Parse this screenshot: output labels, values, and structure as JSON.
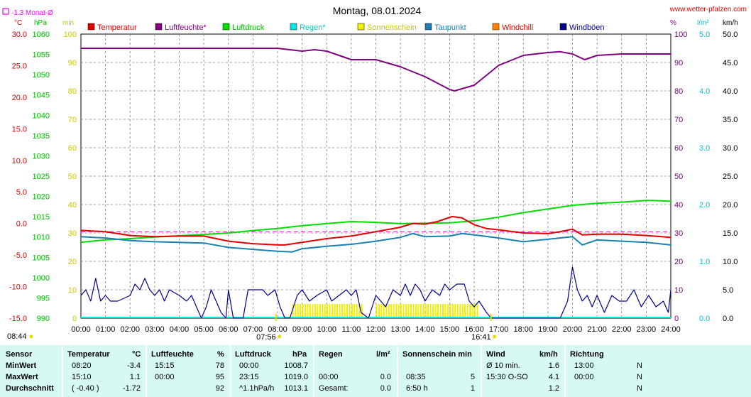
{
  "header": {
    "title": "Montag, 08.01.2024",
    "site": "www.wetter-pfalzen.com",
    "monthly_avg_label": "-1.3 Monat-Ø"
  },
  "axis_units": {
    "temp": "°C",
    "press": "hPa",
    "min": "min",
    "percent": "%",
    "rain": "l/m²",
    "wind": "km/h"
  },
  "colors": {
    "temperature": "#e00000",
    "humidity": "#800080",
    "pressure": "#00dd00",
    "rain": "#00e8e8",
    "sunshine": "#f0f000",
    "dewpoint": "#1a80b0",
    "windchill": "#ff8000",
    "gusts": "#00008b",
    "avg_line": "#ff00ff",
    "grid": "#808080",
    "stats_bg": "#d7f9f4"
  },
  "chart_data": {
    "type": "line",
    "title": "Montag, 08.01.2024",
    "x_ticks": [
      "00:00",
      "01:00",
      "02:00",
      "03:00",
      "04:00",
      "05:00",
      "06:00",
      "07:00",
      "08:00",
      "09:00",
      "10:00",
      "11:00",
      "12:00",
      "13:00",
      "14:00",
      "15:00",
      "16:00",
      "17:00",
      "18:00",
      "19:00",
      "20:00",
      "21:00",
      "22:00",
      "23:00",
      "24:00"
    ],
    "x_range_hours": [
      0,
      24
    ],
    "axes": {
      "temperature": {
        "unit": "°C",
        "range": [
          -15,
          30
        ],
        "ticks": [
          "30.0",
          "25.0",
          "20.0",
          "15.0",
          "10.0",
          "5.0",
          "0.0",
          "-5.0",
          "-10.0",
          "-15.0"
        ]
      },
      "pressure": {
        "unit": "hPa",
        "range": [
          990,
          1060
        ],
        "ticks": [
          "1060",
          "1055",
          "1050",
          "1045",
          "1040",
          "1035",
          "1030",
          "1025",
          "1020",
          "1015",
          "1010",
          "1005",
          "1000",
          "995",
          "990"
        ]
      },
      "minutes": {
        "unit": "min",
        "range": [
          0,
          100
        ],
        "ticks": [
          "100",
          "90",
          "80",
          "70",
          "60",
          "50",
          "40",
          "30",
          "20",
          "10",
          "0"
        ]
      },
      "humidity": {
        "unit": "%",
        "range": [
          0,
          100
        ],
        "ticks": [
          "100",
          "90",
          "80",
          "70",
          "60",
          "50",
          "40",
          "30",
          "20",
          "10",
          "0"
        ]
      },
      "rain": {
        "unit": "l/m²",
        "range": [
          0,
          5
        ],
        "ticks": [
          "5.0",
          "4.0",
          "3.0",
          "2.0",
          "1.0",
          "0.0"
        ]
      },
      "wind": {
        "unit": "km/h",
        "range": [
          0,
          50
        ],
        "ticks": [
          "50.0",
          "45.0",
          "40.0",
          "35.0",
          "30.0",
          "25.0",
          "20.0",
          "15.0",
          "10.0",
          "5.0",
          "0.0"
        ]
      }
    },
    "legend": [
      "Temperatur",
      "Luftfeuchte*",
      "Luftdruck",
      "Regen*",
      "Sonnenschein",
      "Taupunkt",
      "Windchill",
      "Windböen"
    ],
    "monthly_avg_temp": -1.3,
    "sunrise": "08:44",
    "sunset": "16:41",
    "marker_0756": "07:56",
    "series": {
      "temperature": {
        "axis": "temperature",
        "points": [
          [
            0,
            -1.1
          ],
          [
            1,
            -1.3
          ],
          [
            2,
            -1.9
          ],
          [
            3,
            -2.1
          ],
          [
            4,
            -2.0
          ],
          [
            5,
            -2.0
          ],
          [
            6,
            -2.8
          ],
          [
            7,
            -3.2
          ],
          [
            8,
            -3.4
          ],
          [
            8.3,
            -3.4
          ],
          [
            9,
            -3.0
          ],
          [
            10,
            -2.4
          ],
          [
            11,
            -2.0
          ],
          [
            12,
            -1.3
          ],
          [
            13,
            -0.6
          ],
          [
            13.5,
            0.0
          ],
          [
            14,
            -0.1
          ],
          [
            14.5,
            0.3
          ],
          [
            15.1,
            1.1
          ],
          [
            15.5,
            0.9
          ],
          [
            16,
            -0.2
          ],
          [
            16.5,
            -0.8
          ],
          [
            17,
            -1.0
          ],
          [
            18,
            -1.5
          ],
          [
            19,
            -1.6
          ],
          [
            19.5,
            -1.3
          ],
          [
            20,
            -0.9
          ],
          [
            20.4,
            -1.8
          ],
          [
            21,
            -1.7
          ],
          [
            22,
            -1.7
          ],
          [
            23,
            -1.9
          ],
          [
            24,
            -2.2
          ]
        ]
      },
      "dewpoint": {
        "axis": "temperature",
        "points": [
          [
            0,
            -2.1
          ],
          [
            1,
            -2.3
          ],
          [
            2,
            -2.7
          ],
          [
            3,
            -2.9
          ],
          [
            4,
            -3.0
          ],
          [
            5,
            -3.1
          ],
          [
            6,
            -3.8
          ],
          [
            7,
            -4.1
          ],
          [
            8,
            -4.4
          ],
          [
            8.6,
            -4.5
          ],
          [
            9,
            -4.0
          ],
          [
            10,
            -3.6
          ],
          [
            11,
            -3.3
          ],
          [
            12,
            -2.8
          ],
          [
            13,
            -2.2
          ],
          [
            13.5,
            -1.6
          ],
          [
            14,
            -2.1
          ],
          [
            15,
            -2.0
          ],
          [
            15.5,
            -1.6
          ],
          [
            16,
            -1.8
          ],
          [
            17,
            -2.3
          ],
          [
            18,
            -2.9
          ],
          [
            19,
            -2.5
          ],
          [
            20,
            -2.1
          ],
          [
            20.4,
            -3.4
          ],
          [
            21,
            -2.6
          ],
          [
            22,
            -2.8
          ],
          [
            23,
            -3.0
          ],
          [
            24,
            -3.4
          ]
        ]
      },
      "humidity": {
        "axis": "humidity",
        "points": [
          [
            0,
            95
          ],
          [
            1,
            95
          ],
          [
            2,
            95
          ],
          [
            3,
            95
          ],
          [
            4,
            95
          ],
          [
            5,
            95
          ],
          [
            6,
            95
          ],
          [
            7,
            95
          ],
          [
            8,
            95
          ],
          [
            9,
            94
          ],
          [
            9.5,
            94.5
          ],
          [
            10,
            94
          ],
          [
            11,
            91
          ],
          [
            12,
            91
          ],
          [
            13,
            88.5
          ],
          [
            14,
            85
          ],
          [
            15,
            80.5
          ],
          [
            15.2,
            80
          ],
          [
            16,
            82
          ],
          [
            17,
            89
          ],
          [
            18,
            92.5
          ],
          [
            19,
            93.5
          ],
          [
            19.5,
            93.8
          ],
          [
            20,
            93
          ],
          [
            20.5,
            91
          ],
          [
            21,
            92.5
          ],
          [
            22,
            93
          ],
          [
            23,
            93
          ],
          [
            24,
            93
          ]
        ]
      },
      "pressure": {
        "axis": "pressure",
        "points": [
          [
            0,
            1008.7
          ],
          [
            1,
            1009.3
          ],
          [
            2,
            1009.6
          ],
          [
            3,
            1010.0
          ],
          [
            4,
            1010.3
          ],
          [
            5,
            1010.6
          ],
          [
            6,
            1011.0
          ],
          [
            7,
            1011.6
          ],
          [
            8,
            1012.1
          ],
          [
            9,
            1012.8
          ],
          [
            10,
            1013.3
          ],
          [
            11,
            1013.8
          ],
          [
            12,
            1013.6
          ],
          [
            13,
            1013.3
          ],
          [
            14,
            1013.4
          ],
          [
            15,
            1013.5
          ],
          [
            16,
            1014.0
          ],
          [
            17,
            1014.9
          ],
          [
            18,
            1016.0
          ],
          [
            19,
            1016.9
          ],
          [
            20,
            1017.8
          ],
          [
            21,
            1018.3
          ],
          [
            22,
            1018.6
          ],
          [
            23,
            1019.0
          ],
          [
            23.25,
            1019.0
          ],
          [
            24,
            1018.8
          ]
        ]
      },
      "gusts": {
        "axis": "wind",
        "points": [
          [
            0,
            4
          ],
          [
            0.2,
            5
          ],
          [
            0.4,
            3
          ],
          [
            0.6,
            7
          ],
          [
            0.8,
            3
          ],
          [
            1,
            4
          ],
          [
            1.2,
            3
          ],
          [
            1.5,
            3
          ],
          [
            2,
            4
          ],
          [
            2.2,
            6
          ],
          [
            2.4,
            5
          ],
          [
            2.6,
            7
          ],
          [
            2.8,
            5
          ],
          [
            3,
            4
          ],
          [
            3.2,
            5
          ],
          [
            3.4,
            3
          ],
          [
            3.6,
            5
          ],
          [
            4,
            4
          ],
          [
            4.3,
            3
          ],
          [
            4.5,
            4
          ],
          [
            4.7,
            2
          ],
          [
            4.9,
            0
          ],
          [
            5.1,
            2
          ],
          [
            5.3,
            5
          ],
          [
            5.5,
            3
          ],
          [
            5.7,
            1
          ],
          [
            5.9,
            0
          ],
          [
            6,
            5
          ],
          [
            6.2,
            0
          ],
          [
            6.6,
            0
          ],
          [
            6.8,
            5
          ],
          [
            7,
            5
          ],
          [
            7.4,
            5
          ],
          [
            7.6,
            4
          ],
          [
            7.9,
            5
          ],
          [
            8.1,
            2
          ],
          [
            8.3,
            0
          ],
          [
            8.5,
            0
          ],
          [
            8.8,
            4
          ],
          [
            9,
            5
          ],
          [
            9.3,
            3
          ],
          [
            9.6,
            4
          ],
          [
            10,
            5
          ],
          [
            10.2,
            3
          ],
          [
            10.5,
            4
          ],
          [
            10.8,
            5
          ],
          [
            11,
            4
          ],
          [
            11.2,
            5
          ],
          [
            11.4,
            1
          ],
          [
            11.7,
            0
          ],
          [
            12,
            4
          ],
          [
            12.4,
            2
          ],
          [
            12.7,
            5
          ],
          [
            13,
            4
          ],
          [
            13.2,
            6
          ],
          [
            13.4,
            4
          ],
          [
            13.6,
            6
          ],
          [
            13.8,
            5
          ],
          [
            14,
            3
          ],
          [
            14.3,
            5
          ],
          [
            14.6,
            4
          ],
          [
            14.8,
            6
          ],
          [
            15,
            5
          ],
          [
            15.3,
            6
          ],
          [
            15.6,
            6
          ],
          [
            15.8,
            3
          ],
          [
            16,
            2
          ],
          [
            16.2,
            3
          ],
          [
            16.5,
            1
          ],
          [
            16.7,
            0
          ],
          [
            17,
            0
          ],
          [
            19.5,
            0
          ],
          [
            19.8,
            3
          ],
          [
            20,
            9
          ],
          [
            20.2,
            5
          ],
          [
            20.4,
            3
          ],
          [
            20.6,
            4
          ],
          [
            20.8,
            2
          ],
          [
            21,
            4
          ],
          [
            21.3,
            1
          ],
          [
            21.6,
            4
          ],
          [
            21.9,
            3
          ],
          [
            22.2,
            3
          ],
          [
            22.5,
            5
          ],
          [
            22.8,
            2
          ],
          [
            23.1,
            4
          ],
          [
            23.4,
            2
          ],
          [
            23.7,
            3
          ],
          [
            23.9,
            1
          ],
          [
            24,
            5
          ]
        ]
      },
      "sunshine": {
        "axis": "minutes",
        "from": 8.6,
        "to": 16.1,
        "gaps": [
          [
            11.4,
            11.9
          ]
        ],
        "value": 5
      }
    }
  },
  "stats": {
    "headers": {
      "sensor": "Sensor",
      "temp": "Temperatur",
      "temp_unit": "°C",
      "hum": "Luftfeuchte",
      "hum_unit": "%",
      "press": "Luftdruck",
      "press_unit": "hPa",
      "rain": "Regen",
      "rain_unit": "l/m²",
      "sun": "Sonnenschein min",
      "wind": "Wind",
      "wind_unit": "km/h",
      "dir": "Richtung"
    },
    "rows": [
      {
        "label": "MinWert",
        "temp_time": "08:20",
        "temp_val": "-3.4",
        "hum_time": "15:15",
        "hum_val": "78",
        "press_time": "00:00",
        "press_val": "1008.7",
        "rain_time": "",
        "rain_val": "",
        "sun_time": "",
        "sun_val": "",
        "wind_label": "Ø 10 min.",
        "wind_val": "1.6",
        "dir_time": "13:00",
        "dir_val": "N"
      },
      {
        "label": "MaxWert",
        "temp_time": "15:10",
        "temp_val": "1.1",
        "hum_time": "00:00",
        "hum_val": "95",
        "press_time": "23:15",
        "press_val": "1019.0",
        "rain_time": "00:00",
        "rain_val": "0.0",
        "sun_time": "08:35",
        "sun_val": "5",
        "wind_label": "15:30     O-SO",
        "wind_val": "4.1",
        "dir_time": "00:00",
        "dir_val": "N"
      },
      {
        "label": "Durchschnitt",
        "temp_time": "( -0.40 )",
        "temp_val": "-1.72",
        "hum_time": "",
        "hum_val": "92",
        "press_time": "^1.1hPa/h",
        "press_val": "1013.1",
        "rain_time": "Gesamt:",
        "rain_val": "0.0",
        "sun_time": "6:50 h",
        "sun_val": "1",
        "wind_label": "",
        "wind_val": "1.2",
        "dir_time": "",
        "dir_val": "N"
      }
    ]
  }
}
